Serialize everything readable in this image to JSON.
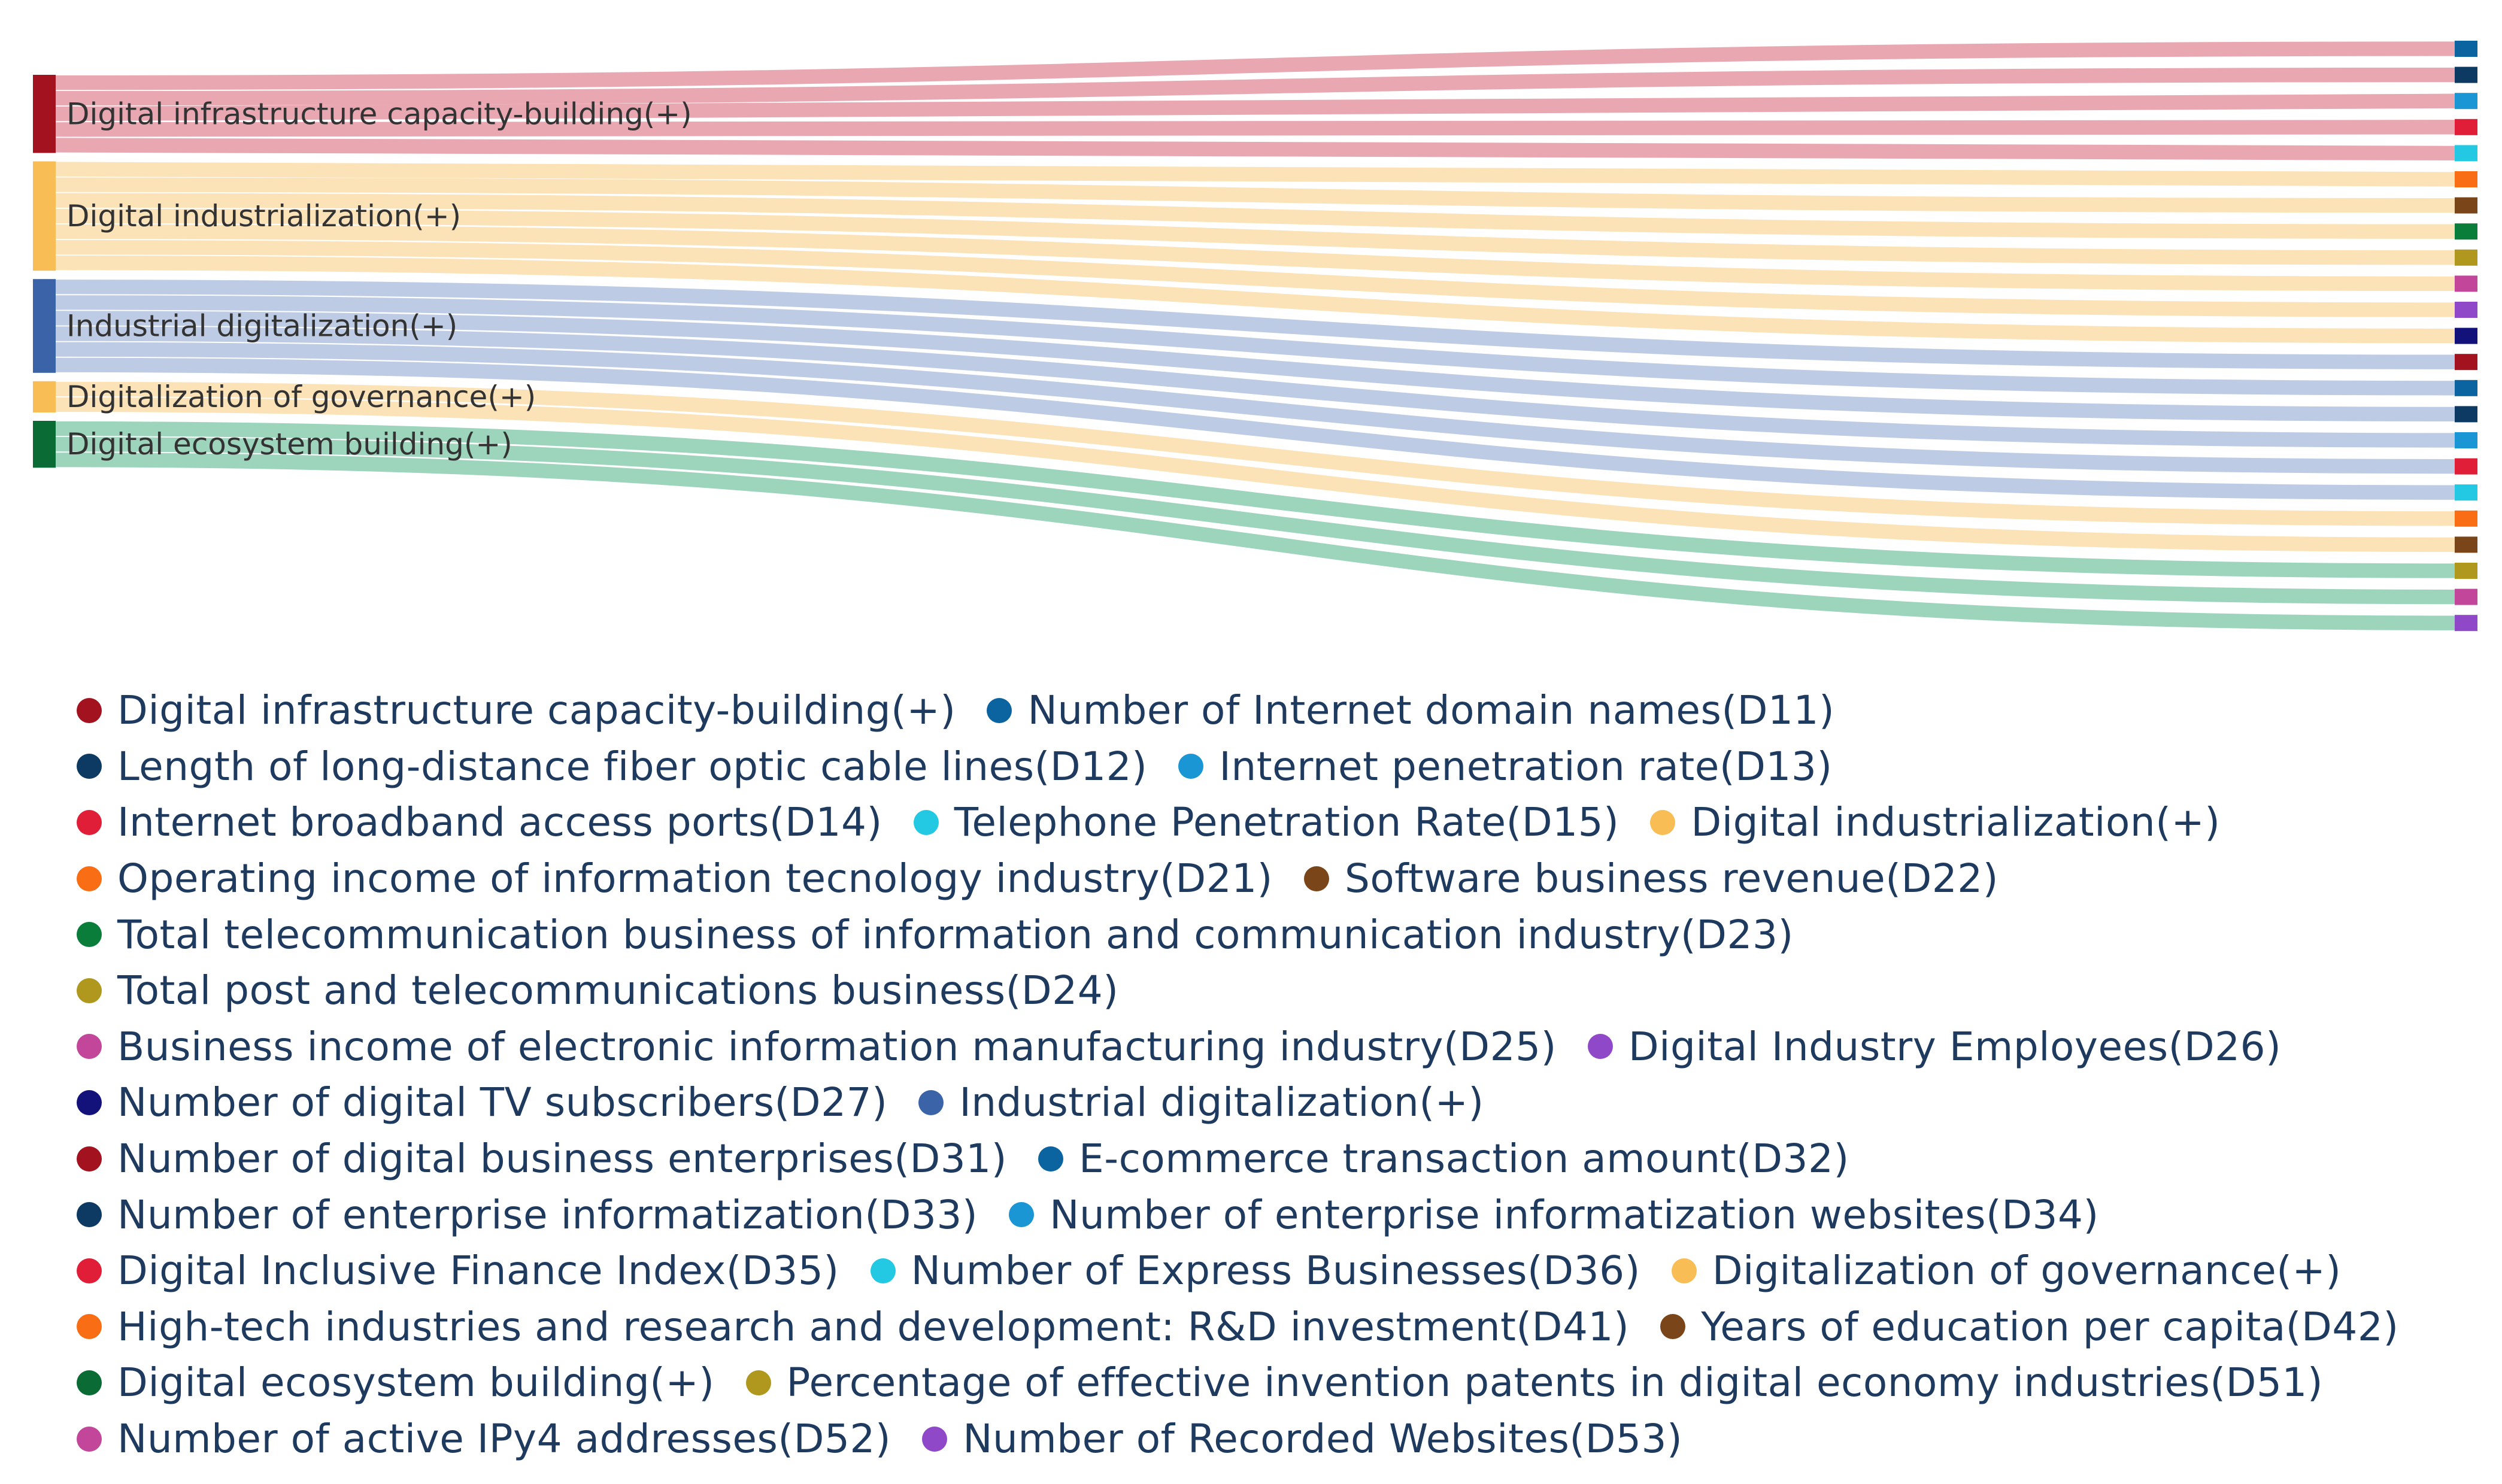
{
  "chart_data": {
    "type": "sankey",
    "title": "",
    "sources": [
      {
        "name": "Digital infrastructure capacity-building(+)",
        "color": "#a3131f",
        "link_color": "#e8a2ae"
      },
      {
        "name": "Digital industrialization(+)",
        "color": "#f9bd55",
        "link_color": "#fce0b3"
      },
      {
        "name": "Industrial digitalization(+)",
        "color": "#3b63a8",
        "link_color": "#b9c8e3"
      },
      {
        "name": "Digitalization of governance(+)",
        "color": "#f9bd55",
        "link_color": "#fce0b3"
      },
      {
        "name": "Digital ecosystem building(+)",
        "color": "#0a6b35",
        "link_color": "#97d2b8"
      }
    ],
    "targets": [
      {
        "name": "Number of Internet domain names(D11)",
        "code": "D11",
        "color": "#0b64a0",
        "source": 0
      },
      {
        "name": "Length of long-distance fiber optic cable lines(D12)",
        "code": "D12",
        "color": "#0d3a62",
        "source": 0
      },
      {
        "name": "Internet penetration rate(D13)",
        "code": "D13",
        "color": "#1a96d4",
        "source": 0
      },
      {
        "name": "Internet broadband access ports(D14)",
        "code": "D14",
        "color": "#e01e37",
        "source": 0
      },
      {
        "name": "Telephone Penetration Rate(D15)",
        "code": "D15",
        "color": "#23c9e2",
        "source": 0
      },
      {
        "name": "Operating income of information tecnology industry(D21)",
        "code": "D21",
        "color": "#f96e15",
        "source": 1
      },
      {
        "name": "Software business revenue(D22)",
        "code": "D22",
        "color": "#7a4518",
        "source": 1
      },
      {
        "name": "Total telecommunication business of information and communication industry(D23)",
        "code": "D23",
        "color": "#0a7d3a",
        "source": 1
      },
      {
        "name": "Total post and telecommunications business(D24)",
        "code": "D24",
        "color": "#b0981e",
        "source": 1
      },
      {
        "name": "Business income of electronic information manufacturing industry(D25)",
        "code": "D25",
        "color": "#c2479b",
        "source": 1
      },
      {
        "name": "Digital Industry Employees(D26)",
        "code": "D26",
        "color": "#8f49c8",
        "source": 1
      },
      {
        "name": "Number of digital TV subscribers(D27)",
        "code": "D27",
        "color": "#13127a",
        "source": 1
      },
      {
        "name": "Number of digital business enterprises(D31)",
        "code": "D31",
        "color": "#a3131f",
        "source": 2
      },
      {
        "name": "E-commerce transaction amount(D32)",
        "code": "D32",
        "color": "#0b64a0",
        "source": 2
      },
      {
        "name": "Number of enterprise informatization(D33)",
        "code": "D33",
        "color": "#0d3a62",
        "source": 2
      },
      {
        "name": "Number of enterprise informatization websites(D34)",
        "code": "D34",
        "color": "#1a96d4",
        "source": 2
      },
      {
        "name": "Digital Inclusive Finance Index(D35)",
        "code": "D35",
        "color": "#e01e37",
        "source": 2
      },
      {
        "name": "Number of Express Businesses(D36)",
        "code": "D36",
        "color": "#23c9e2",
        "source": 2
      },
      {
        "name": "High-tech industries and research and development: R&D investment(D41)",
        "code": "D41",
        "color": "#f96e15",
        "source": 3
      },
      {
        "name": "Years of education per capita(D42)",
        "code": "D42",
        "color": "#7a4518",
        "source": 3
      },
      {
        "name": "Percentage of effective invention patents in digital economy industries(D51)",
        "code": "D51",
        "color": "#b0981e",
        "source": 4
      },
      {
        "name": "Number of active IPy4 addresses(D52)",
        "code": "D52",
        "color": "#c2479b",
        "source": 4
      },
      {
        "name": "Number of Recorded Websites(D53)",
        "code": "D53",
        "color": "#8f49c8",
        "source": 4
      }
    ],
    "values": [
      1,
      1,
      1,
      1,
      1,
      1,
      1,
      1,
      1,
      1,
      1,
      1,
      1,
      1,
      1,
      1,
      1,
      1,
      1,
      1,
      1,
      1,
      1
    ]
  },
  "legend": {
    "rows": [
      [
        {
          "label": "Digital infrastructure capacity-building(+)",
          "color": "#a3131f"
        },
        {
          "label": "Number of Internet domain names(D11)",
          "color": "#0b64a0"
        }
      ],
      [
        {
          "label": "Length of long-distance fiber optic cable lines(D12)",
          "color": "#0d3a62"
        },
        {
          "label": "Internet penetration rate(D13)",
          "color": "#1a96d4"
        }
      ],
      [
        {
          "label": "Internet broadband access ports(D14)",
          "color": "#e01e37"
        },
        {
          "label": "Telephone Penetration Rate(D15)",
          "color": "#23c9e2"
        },
        {
          "label": "Digital industrialization(+)",
          "color": "#f9bd55"
        }
      ],
      [
        {
          "label": "Operating income of information tecnology industry(D21)",
          "color": "#f96e15"
        },
        {
          "label": "Software business revenue(D22)",
          "color": "#7a4518"
        }
      ],
      [
        {
          "label": "Total telecommunication business of information and communication industry(D23)",
          "color": "#0a7d3a"
        }
      ],
      [
        {
          "label": "Total post and telecommunications business(D24)",
          "color": "#b0981e"
        }
      ],
      [
        {
          "label": "Business income of electronic information manufacturing industry(D25)",
          "color": "#c2479b"
        },
        {
          "label": "Digital Industry Employees(D26)",
          "color": "#8f49c8"
        }
      ],
      [
        {
          "label": "Number of digital TV subscribers(D27)",
          "color": "#13127a"
        },
        {
          "label": "Industrial digitalization(+)",
          "color": "#3b63a8"
        }
      ],
      [
        {
          "label": "Number of digital business enterprises(D31)",
          "color": "#a3131f"
        },
        {
          "label": "E-commerce transaction amount(D32)",
          "color": "#0b64a0"
        }
      ],
      [
        {
          "label": "Number of enterprise informatization(D33)",
          "color": "#0d3a62"
        },
        {
          "label": "Number of enterprise informatization websites(D34)",
          "color": "#1a96d4"
        }
      ],
      [
        {
          "label": "Digital Inclusive Finance Index(D35)",
          "color": "#e01e37"
        },
        {
          "label": "Number of Express Businesses(D36)",
          "color": "#23c9e2"
        },
        {
          "label": "Digitalization of governance(+)",
          "color": "#f9bd55"
        }
      ],
      [
        {
          "label": "High-tech industries and research and development: R&D investment(D41)",
          "color": "#f96e15"
        },
        {
          "label": "Years of education per capita(D42)",
          "color": "#7a4518"
        }
      ],
      [
        {
          "label": "Digital ecosystem building(+)",
          "color": "#0a6b35"
        },
        {
          "label": "Percentage of effective invention patents in digital economy industries(D51)",
          "color": "#b0981e"
        }
      ],
      [
        {
          "label": "Number of active IPy4 addresses(D52)",
          "color": "#c2479b"
        },
        {
          "label": "Number of Recorded Websites(D53)",
          "color": "#8f49c8"
        }
      ]
    ]
  }
}
